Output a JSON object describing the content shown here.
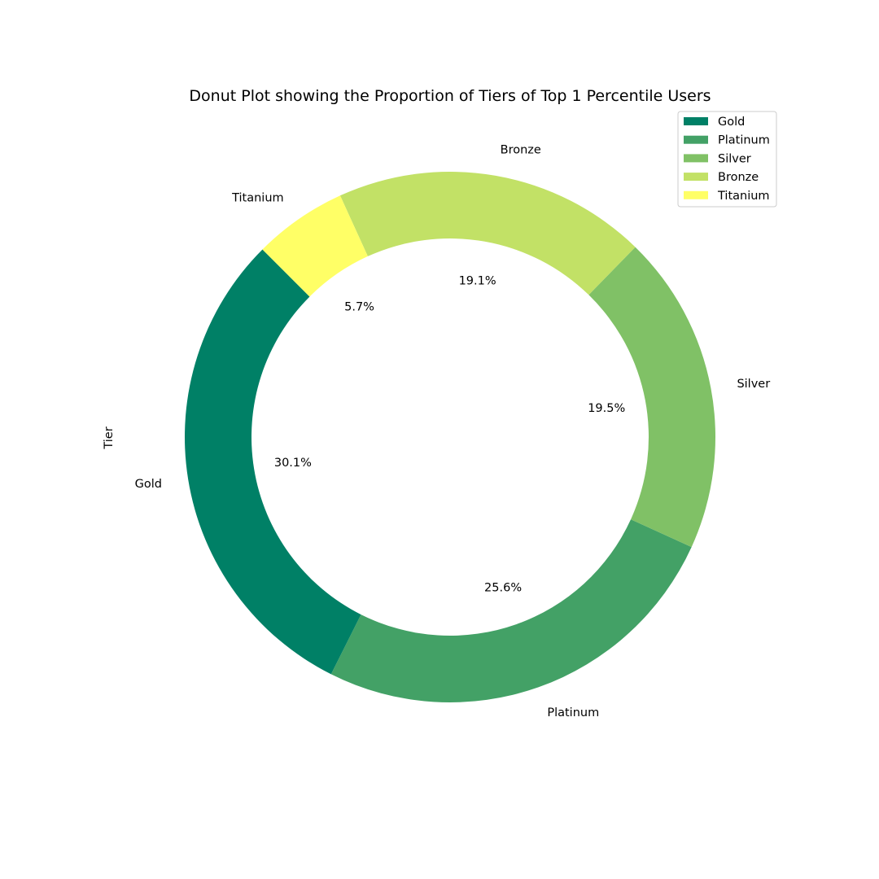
{
  "chart_data": {
    "type": "pie",
    "variant": "donut",
    "title": "Donut Plot showing the Proportion of Tiers of Top 1 Percentile Users",
    "ylabel": "Tier",
    "legend_position": "top-right",
    "start_angle_deg": 135,
    "direction": "counterclockwise",
    "slices": [
      {
        "label": "Gold",
        "value": 30.1,
        "pct_label": "30.1%",
        "color": "#008066"
      },
      {
        "label": "Platinum",
        "value": 25.6,
        "pct_label": "25.6%",
        "color": "#43a166"
      },
      {
        "label": "Silver",
        "value": 19.5,
        "pct_label": "19.5%",
        "color": "#80c166"
      },
      {
        "label": "Bronze",
        "value": 19.1,
        "pct_label": "19.1%",
        "color": "#c2e166"
      },
      {
        "label": "Titanium",
        "value": 5.7,
        "pct_label": "5.7%",
        "color": "#ffff66"
      }
    ]
  }
}
